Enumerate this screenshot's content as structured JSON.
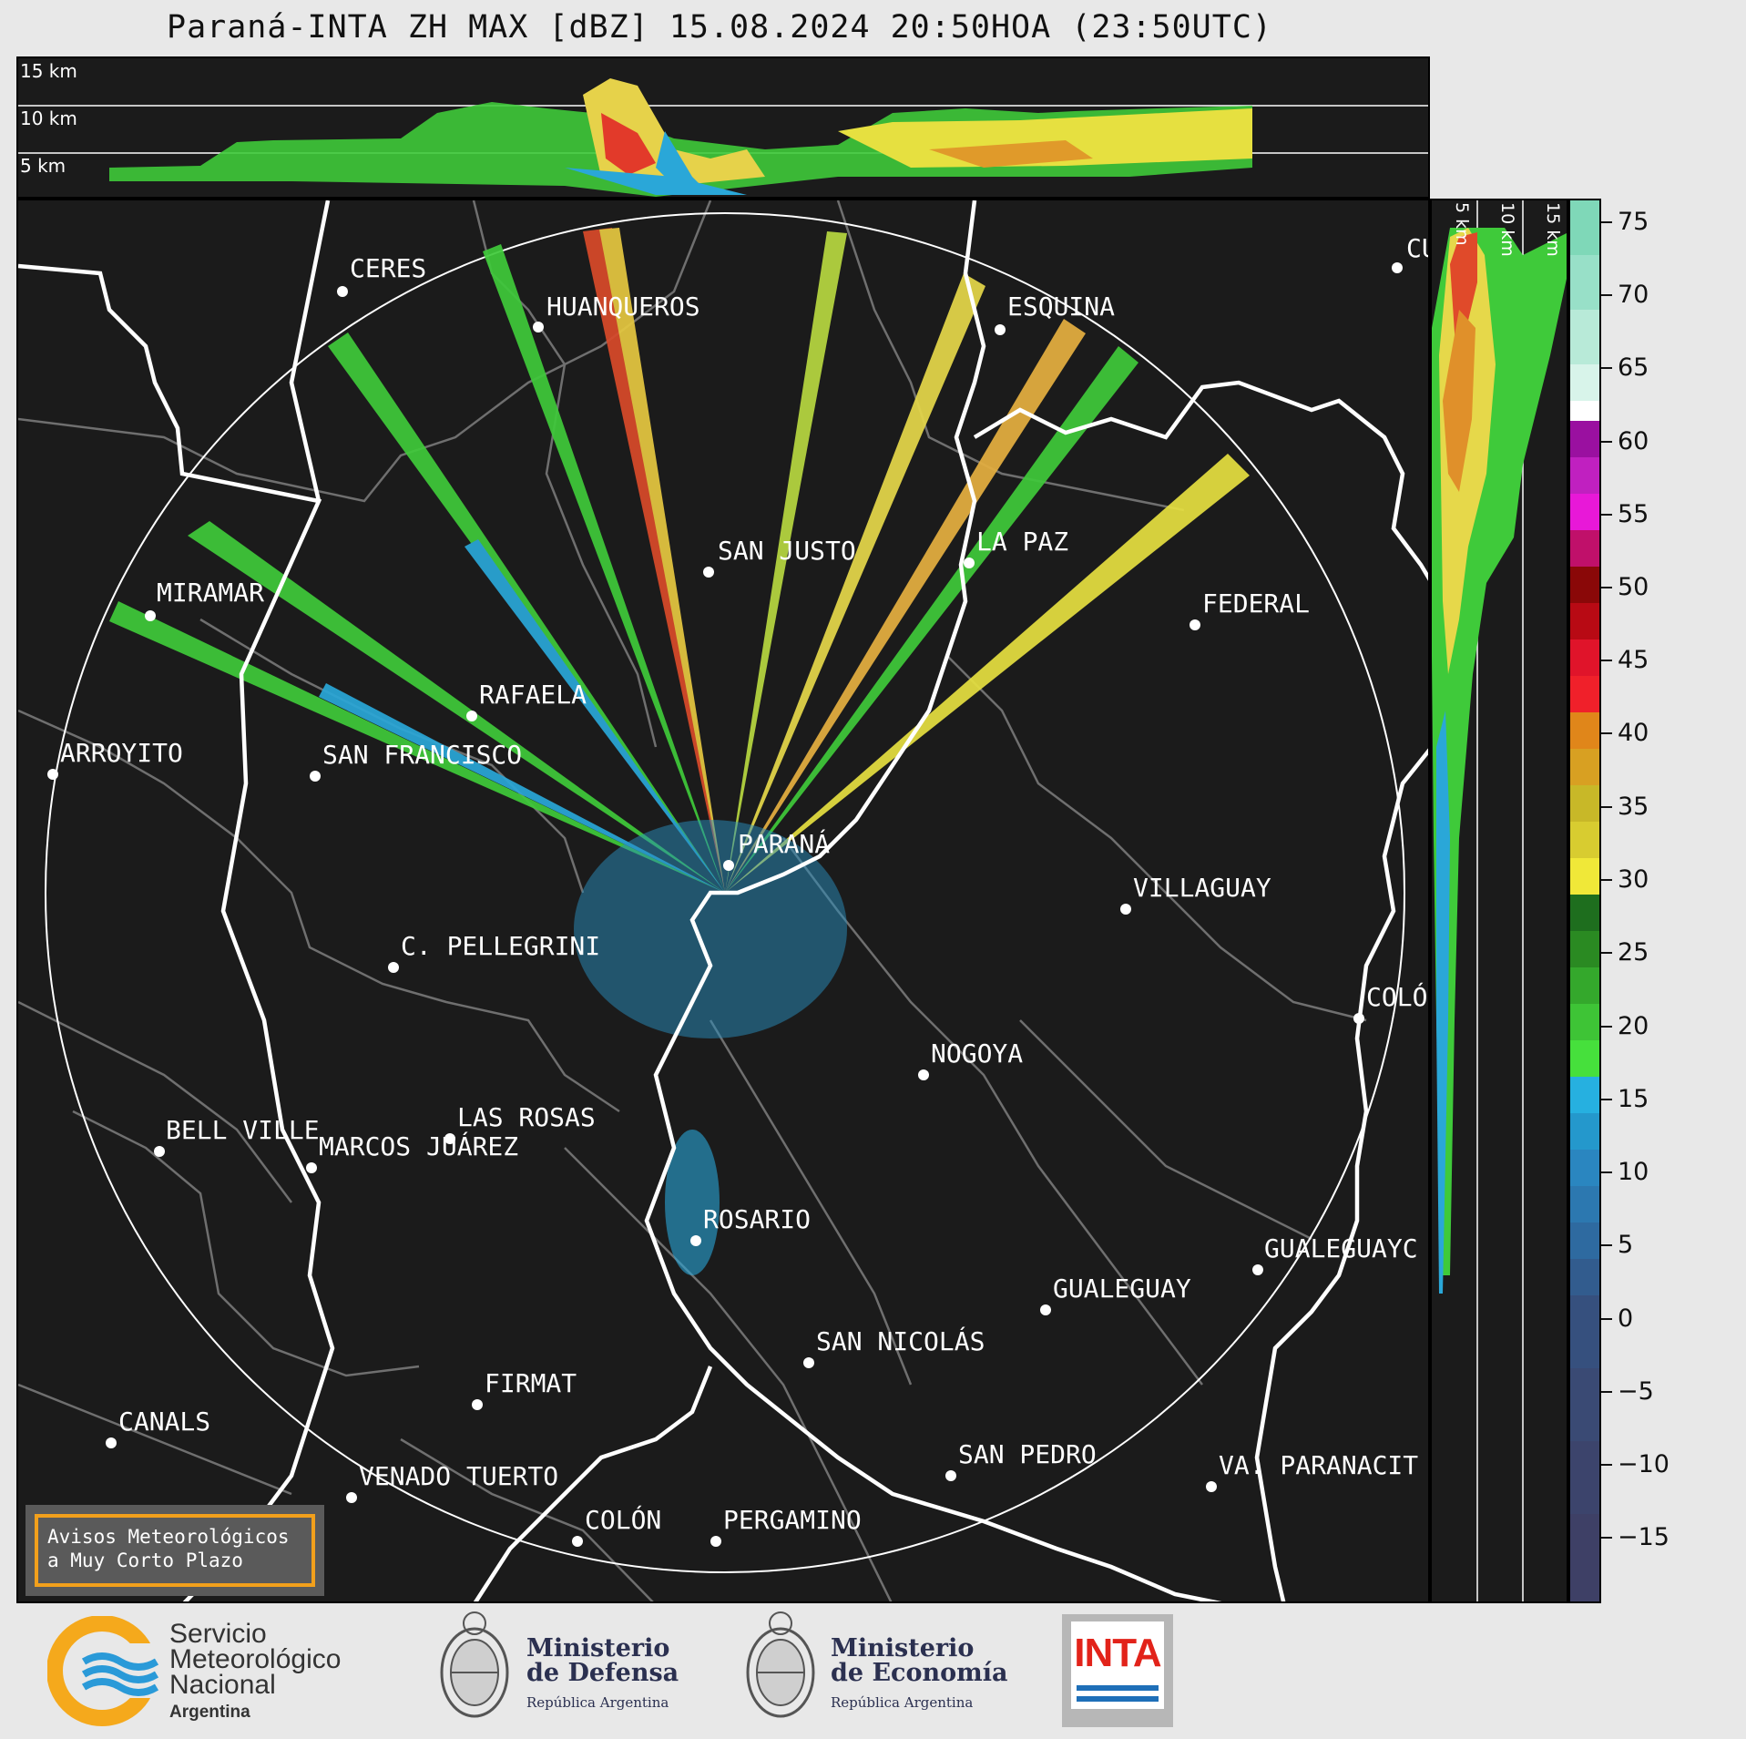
{
  "title": "Paraná-INTA ZH MAX [dBZ] 15.08.2024 20:50HOA (23:50UTC)",
  "height_labels": [
    "15 km",
    "10 km",
    "5 km"
  ],
  "side_height_labels": [
    "5 km",
    "10 km",
    "15 km"
  ],
  "cities": [
    {
      "name": "CERES"
    },
    {
      "name": "HUANQUEROS"
    },
    {
      "name": "ESQUINA"
    },
    {
      "name": "CU"
    },
    {
      "name": "MIRAMAR"
    },
    {
      "name": "SAN JUSTO"
    },
    {
      "name": "LA PAZ"
    },
    {
      "name": "FEDERAL"
    },
    {
      "name": "RAFAELA"
    },
    {
      "name": "ARROYITO"
    },
    {
      "name": "SAN FRANCISCO"
    },
    {
      "name": "PARANÁ"
    },
    {
      "name": "VILLAGUAY"
    },
    {
      "name": "C. PELLEGRINI"
    },
    {
      "name": "COLÓ"
    },
    {
      "name": "NOGOYA"
    },
    {
      "name": "LAS ROSAS"
    },
    {
      "name": "BELL VILLE"
    },
    {
      "name": "MARCOS JUÁREZ"
    },
    {
      "name": "ROSARIO"
    },
    {
      "name": "GUALEGUAYC"
    },
    {
      "name": "GUALEGUAY"
    },
    {
      "name": "SAN NICOLÁS"
    },
    {
      "name": "FIRMAT"
    },
    {
      "name": "CANALS"
    },
    {
      "name": "SAN PEDRO"
    },
    {
      "name": "VENADO TUERTO"
    },
    {
      "name": "VA. PARANACIT"
    },
    {
      "name": "COLÓN"
    },
    {
      "name": "PERGAMINO"
    }
  ],
  "colorbar": {
    "unit": "dBZ",
    "ticks": [
      "75",
      "70",
      "65",
      "60",
      "55",
      "50",
      "45",
      "40",
      "35",
      "30",
      "25",
      "20",
      "15",
      "10",
      "5",
      "0",
      "−5",
      "−10",
      "−15"
    ]
  },
  "notice": {
    "line1": "Avisos Meteorológicos",
    "line2": "a Muy Corto Plazo"
  },
  "logos": {
    "smn": {
      "line1": "Servicio",
      "line2": "Meteorológico",
      "line3": "Nacional",
      "line4": "Argentina"
    },
    "defensa": {
      "line1": "Ministerio",
      "line2": "de Defensa",
      "line3": "República Argentina"
    },
    "economia": {
      "line1": "Ministerio",
      "line2": "de Economía",
      "line3": "República Argentina"
    },
    "inta": {
      "word": "INTA"
    }
  }
}
